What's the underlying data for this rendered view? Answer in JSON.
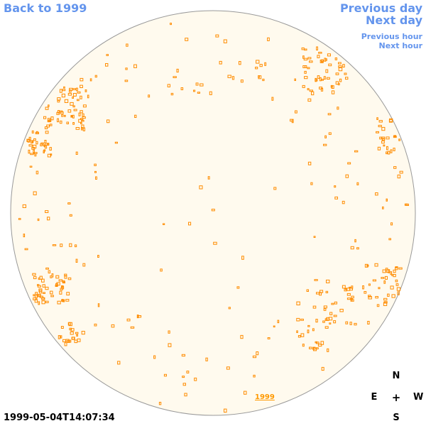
{
  "navigation": {
    "back_label": "Back to 1999",
    "previous_day_label": "Previous day",
    "next_day_label": "Next day",
    "previous_hour_label": "Previous hour",
    "next_hour_label": "Next hour"
  },
  "timestamp": "1999-05-04T14:07:34",
  "compass": {
    "north": "N",
    "south": "S",
    "east": "E",
    "west": "W",
    "center": "+"
  },
  "year_link_label": "1999",
  "colors": {
    "disk_fill": "#fffaee",
    "disk_outline": "#999999",
    "feature": "#ff8c00",
    "link": "#6495ed",
    "year_link": "#ff9900"
  }
}
